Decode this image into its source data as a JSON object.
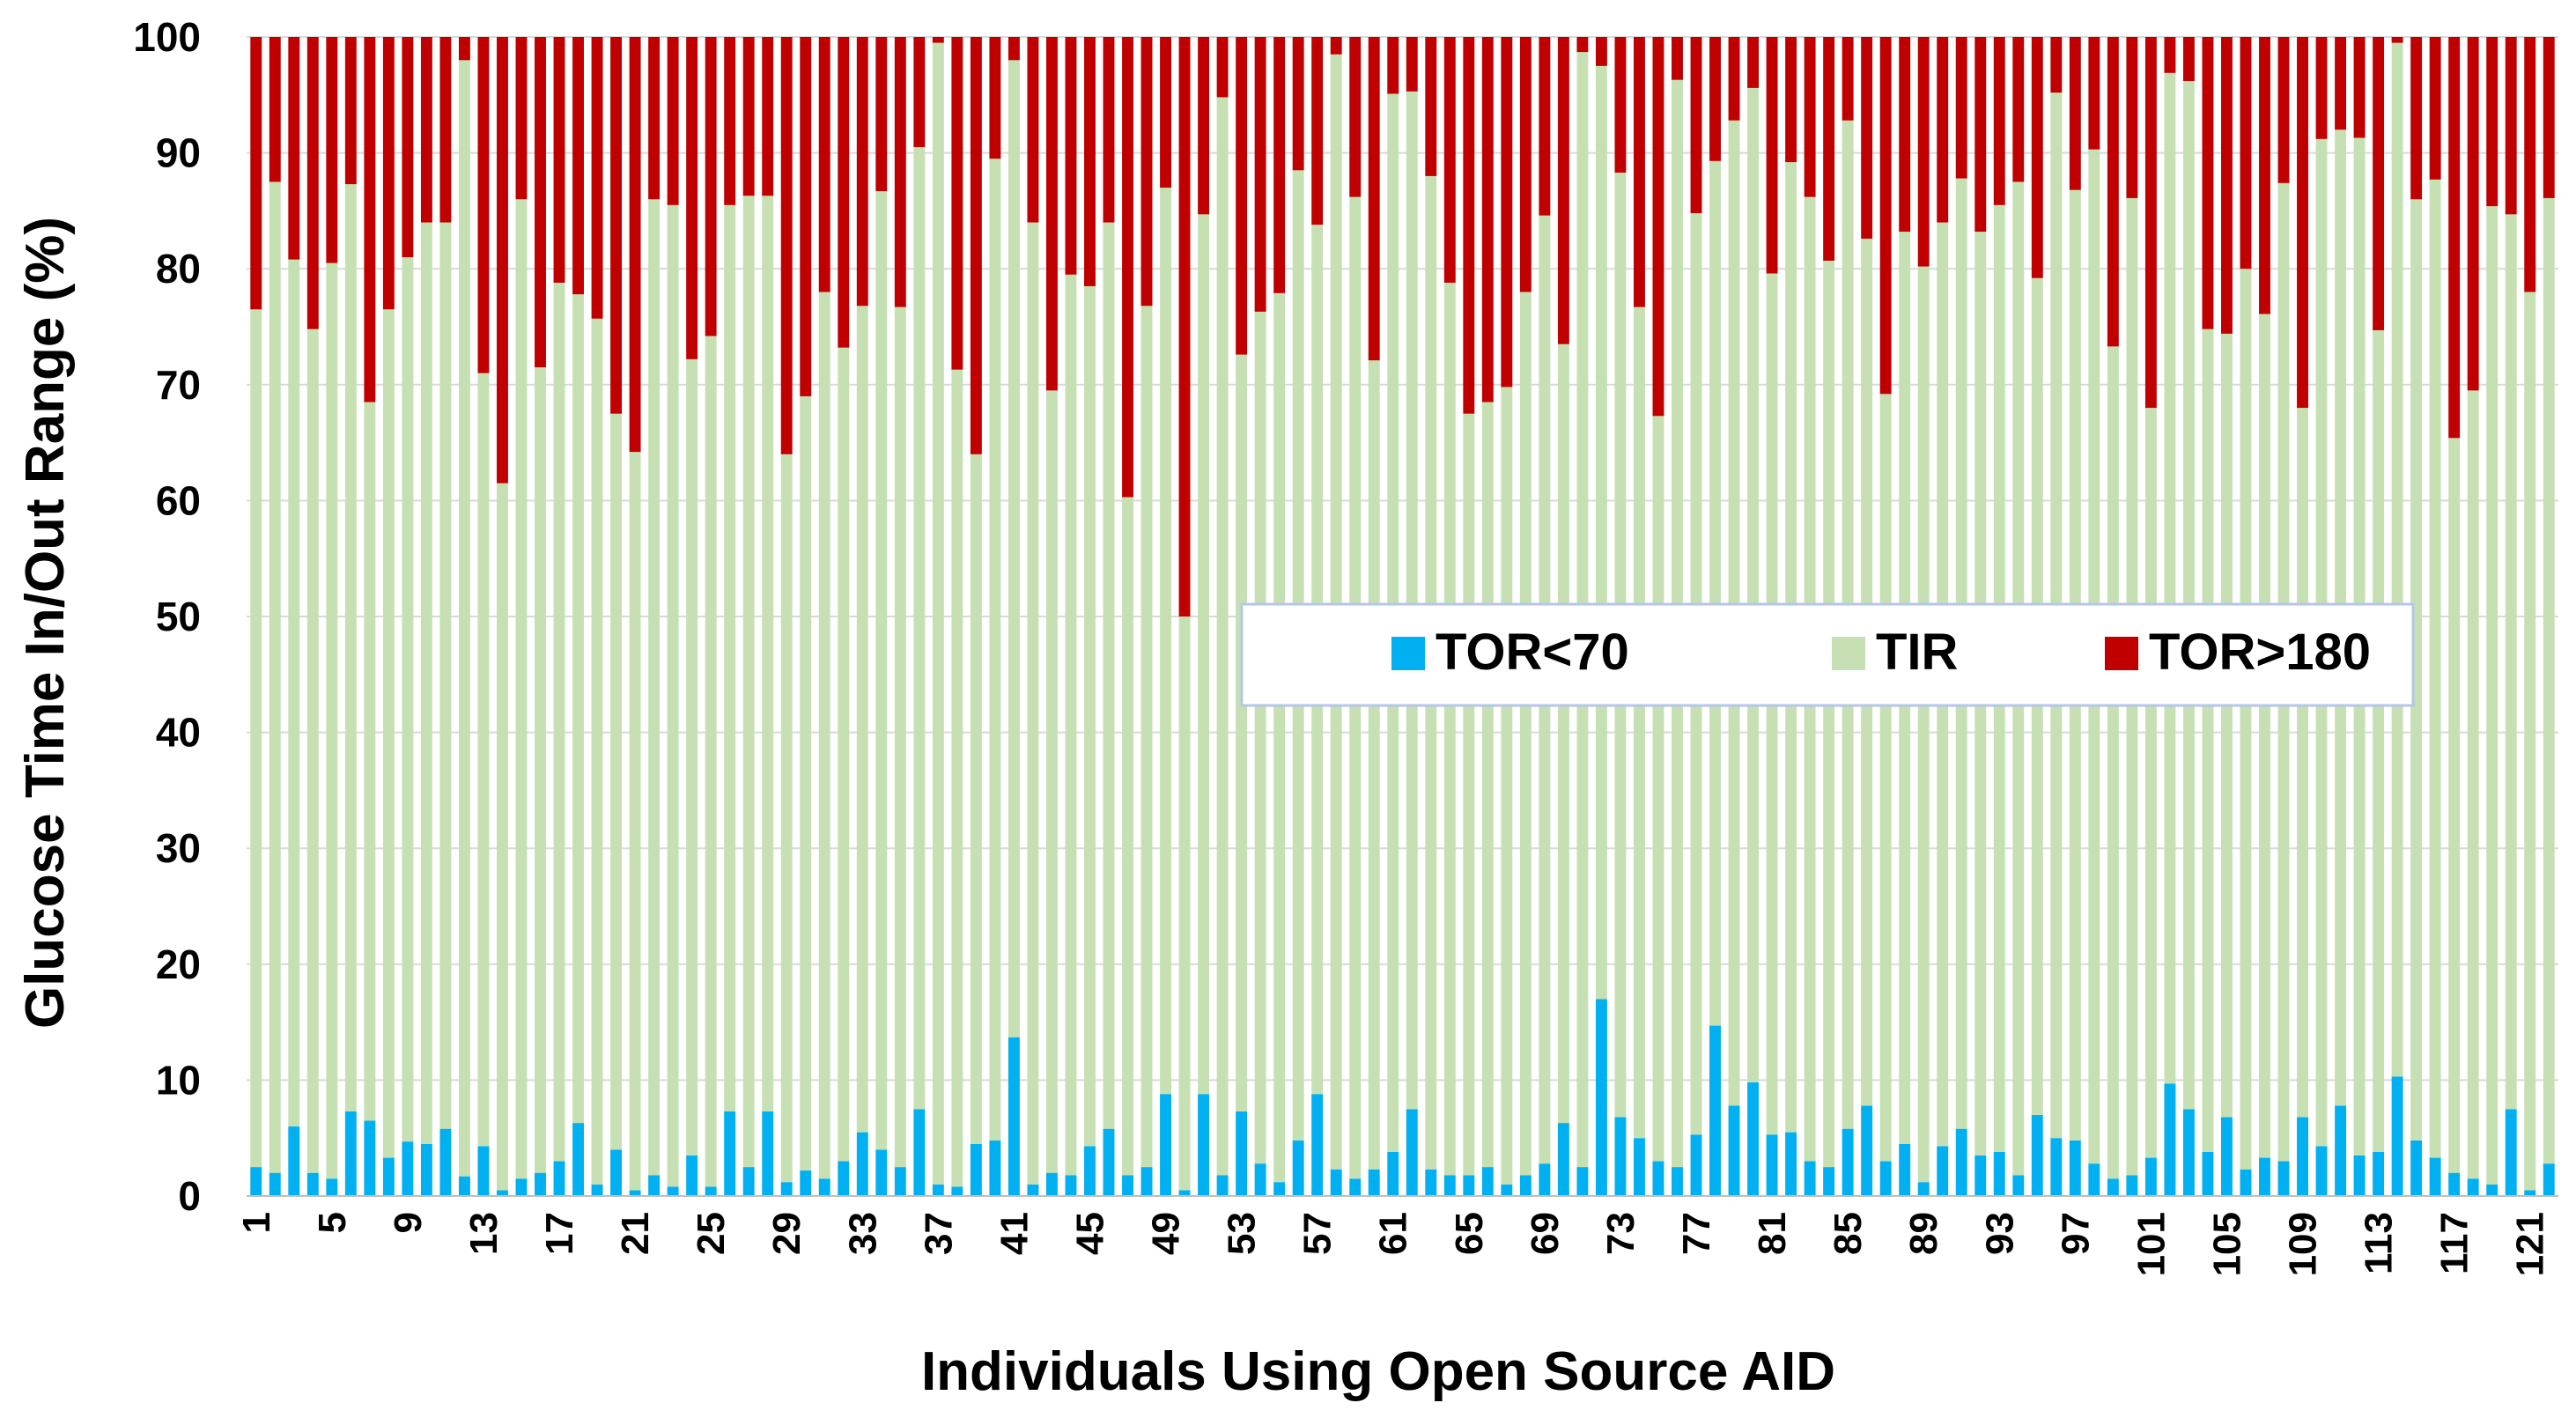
{
  "chart_data": {
    "type": "bar",
    "stacked": true,
    "xlabel": "Individuals Using Open Source AID",
    "ylabel": "Glucose Time In/Out Range (%)",
    "ylim": [
      0,
      100
    ],
    "yticks": [
      0,
      10,
      20,
      30,
      40,
      50,
      60,
      70,
      80,
      90,
      100
    ],
    "grid": "horizontal",
    "legend_position": "center-right",
    "xtick_labels": [
      "1",
      "5",
      "9",
      "13",
      "17",
      "21",
      "25",
      "29",
      "33",
      "37",
      "41",
      "45",
      "49",
      "53",
      "57",
      "61",
      "65",
      "69",
      "73",
      "77",
      "81",
      "85",
      "89",
      "93",
      "97",
      "101",
      "105",
      "109",
      "113",
      "117",
      "121"
    ],
    "categories": [
      "1",
      "2",
      "3",
      "4",
      "5",
      "6",
      "7",
      "8",
      "9",
      "10",
      "11",
      "12",
      "13",
      "14",
      "15",
      "16",
      "17",
      "18",
      "19",
      "20",
      "21",
      "22",
      "23",
      "24",
      "25",
      "26",
      "27",
      "28",
      "29",
      "30",
      "31",
      "32",
      "33",
      "34",
      "35",
      "36",
      "37",
      "38",
      "39",
      "40",
      "41",
      "42",
      "43",
      "44",
      "45",
      "46",
      "47",
      "48",
      "49",
      "50",
      "51",
      "52",
      "53",
      "54",
      "55",
      "56",
      "57",
      "58",
      "59",
      "60",
      "61",
      "62",
      "63",
      "64",
      "65",
      "66",
      "67",
      "68",
      "69",
      "70",
      "71",
      "72",
      "73",
      "74",
      "75",
      "76",
      "77",
      "78",
      "79",
      "80",
      "81",
      "82",
      "83",
      "84",
      "85",
      "86",
      "87",
      "88",
      "89",
      "90",
      "91",
      "92",
      "93",
      "94",
      "95",
      "96",
      "97",
      "98",
      "99",
      "100",
      "101",
      "102",
      "103",
      "104",
      "105",
      "106",
      "107",
      "108",
      "109",
      "110",
      "111",
      "112",
      "113",
      "114",
      "115",
      "116",
      "117",
      "118",
      "119",
      "120",
      "121",
      "122"
    ],
    "series": [
      {
        "name": "TOR<70",
        "color": "#00b0f0",
        "values": [
          2.5,
          2,
          6,
          2,
          1.5,
          7.3,
          6.5,
          3.3,
          4.7,
          4.5,
          5.8,
          1.7,
          4.3,
          0.5,
          1.5,
          2,
          3,
          6.3,
          1,
          4,
          0.5,
          1.8,
          0.8,
          3.5,
          0.8,
          7.3,
          2.5,
          7.3,
          1.2,
          2.2,
          1.5,
          3,
          5.5,
          4,
          2.5,
          7.5,
          1,
          0.8,
          4.5,
          4.8,
          13.7,
          1,
          2,
          1.8,
          4.3,
          5.8,
          1.8,
          2.5,
          8.8,
          0.5,
          8.8,
          1.8,
          7.3,
          2.8,
          1.2,
          4.8,
          8.8,
          2.3,
          1.5,
          2.3,
          3.8,
          7.5,
          2.3,
          1.8,
          1.8,
          2.5,
          1,
          1.8,
          2.8,
          6.3,
          2.5,
          17,
          6.8,
          5,
          3,
          2.5,
          5.3,
          14.7,
          7.8,
          9.8,
          5.3,
          5.5,
          3,
          2.5,
          5.8,
          7.8,
          3,
          4.5,
          1.2,
          4.3,
          5.8,
          3.5,
          3.8,
          1.8,
          7,
          5,
          4.8,
          2.8,
          1.5,
          1.8,
          3.3,
          9.7,
          7.5,
          3.8,
          6.8,
          2.3,
          3.3,
          3,
          6.8,
          4.3,
          7.8,
          3.5,
          3.8,
          10.3,
          4.8,
          3.3,
          2,
          1.5,
          1,
          7.5,
          0.5,
          2.8
        ]
      },
      {
        "name": "TIR",
        "color": "#c6e0b4",
        "values": [
          74,
          85.5,
          74.8,
          72.8,
          79,
          80,
          62,
          73.2,
          76.3,
          79.5,
          78.2,
          96.3,
          66.7,
          61,
          84.5,
          69.5,
          75.8,
          71.5,
          74.7,
          63.5,
          63.7,
          84.2,
          84.7,
          68.7,
          73.4,
          78.2,
          83.8,
          79,
          62.8,
          66.8,
          76.5,
          70.2,
          71.3,
          82.7,
          74.2,
          83,
          98.5,
          70.5,
          59.5,
          84.7,
          84.3,
          83,
          67.5,
          77.7,
          74.2,
          78.2,
          58.5,
          74.3,
          78.2,
          49.5,
          75.9,
          93,
          65.3,
          73.5,
          76.7,
          83.7,
          75,
          96.2,
          84.7,
          69.8,
          91.3,
          87.8,
          85.7,
          77,
          65.7,
          66,
          68.8,
          76.2,
          81.8,
          67.2,
          96.2,
          80.5,
          81.5,
          71.7,
          64.3,
          93.8,
          79.5,
          74.6,
          85,
          85.8,
          74.3,
          83.7,
          83.2,
          78.2,
          87,
          74.8,
          66.2,
          78.7,
          79,
          79.7,
          82,
          79.7,
          81.7,
          85.7,
          72.2,
          90.2,
          82,
          87.5,
          71.8,
          84.3,
          64.7,
          87.2,
          88.7,
          71,
          67.6,
          77.7,
          72.8,
          84.4,
          61.2,
          86.9,
          84.2,
          87.8,
          70.9,
          89.2,
          81.2,
          84.4,
          63.4,
          68,
          84.4,
          77.2,
          77.5,
          83.3
        ]
      },
      {
        "name": "TOR>180",
        "color": "#c00000",
        "values": [
          23.5,
          12.5,
          19.2,
          25.2,
          19.5,
          12.7,
          31.5,
          23.5,
          19,
          16,
          16,
          2,
          29,
          38.5,
          14,
          28.5,
          21.2,
          22.2,
          24.3,
          32.5,
          35.8,
          14,
          14.5,
          27.8,
          25.8,
          14.5,
          13.7,
          13.7,
          36,
          31,
          22,
          26.8,
          23.2,
          13.3,
          23.3,
          9.5,
          0.5,
          28.7,
          36,
          10.5,
          2,
          16,
          30.5,
          20.5,
          21.5,
          16,
          39.7,
          23.2,
          13,
          50,
          15.3,
          5.2,
          27.4,
          23.7,
          22.1,
          11.5,
          16.2,
          1.5,
          13.8,
          27.9,
          4.9,
          4.7,
          12,
          21.2,
          32.5,
          31.5,
          30.2,
          22,
          15.4,
          26.5,
          1.3,
          2.5,
          11.7,
          23.3,
          32.7,
          3.7,
          15.2,
          10.7,
          7.2,
          4.4,
          20.4,
          10.8,
          13.8,
          19.3,
          7.2,
          17.4,
          30.8,
          16.8,
          19.8,
          16,
          12.2,
          16.8,
          14.5,
          12.5,
          20.8,
          4.8,
          13.2,
          9.7,
          26.7,
          13.9,
          32,
          3.1,
          3.8,
          25.2,
          25.6,
          20,
          23.9,
          12.6,
          32,
          8.8,
          8,
          8.7,
          25.3,
          0.5,
          14,
          12.3,
          34.6,
          30.5,
          14.6,
          15.3,
          22,
          13.9
        ]
      }
    ]
  }
}
